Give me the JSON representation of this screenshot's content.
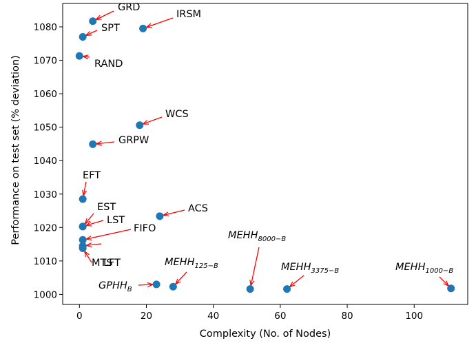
{
  "chart_data": {
    "type": "scatter",
    "title": "",
    "xlabel": "Complexity (No. of Nodes)",
    "ylabel": "Performance on test set (% deviation)",
    "xlim": [
      -5,
      116
    ],
    "ylim": [
      997,
      1087
    ],
    "xticks": [
      0,
      20,
      40,
      60,
      80,
      100
    ],
    "yticks": [
      1000,
      1010,
      1020,
      1030,
      1040,
      1050,
      1060,
      1070,
      1080
    ],
    "xtick_labels": [
      "0",
      "20",
      "40",
      "60",
      "80",
      "100"
    ],
    "ytick_labels": [
      "1000",
      "1010",
      "1020",
      "1030",
      "1040",
      "1050",
      "1060",
      "1070",
      "1080"
    ],
    "grid": false,
    "marker_color": "#1f77b4",
    "arrow_color": "#ff0000",
    "points": [
      {
        "label": "GRD",
        "x": 4,
        "y": 1081.7
      },
      {
        "label": "IRSM",
        "x": 19,
        "y": 1079.5
      },
      {
        "label": "SPT",
        "x": 1,
        "y": 1077
      },
      {
        "label": "RAND",
        "x": 0,
        "y": 1071.3
      },
      {
        "label": "WCS",
        "x": 18,
        "y": 1050.6
      },
      {
        "label": "GRPW",
        "x": 4,
        "y": 1044.9
      },
      {
        "label": "EFT",
        "x": 1,
        "y": 1028.5
      },
      {
        "label": "EST",
        "x": 1,
        "y": 1020.3
      },
      {
        "label": "ACS",
        "x": 24,
        "y": 1023.4
      },
      {
        "label": "LST",
        "x": 1,
        "y": 1020.3
      },
      {
        "label": "FIFO",
        "x": 1,
        "y": 1016.3
      },
      {
        "label": "LFT",
        "x": 1,
        "y": 1014.5
      },
      {
        "label": "MTS",
        "x": 1,
        "y": 1013.8
      },
      {
        "label": "GPHH",
        "sub": "B",
        "x": 23,
        "y": 1003
      },
      {
        "label": "MEHH",
        "sub": "125−B",
        "x": 28,
        "y": 1002.3
      },
      {
        "label": "MEHH",
        "sub": "8000−B",
        "x": 51,
        "y": 1001.6
      },
      {
        "label": "MEHH",
        "sub": "3375−B",
        "x": 62,
        "y": 1001.6
      },
      {
        "label": "MEHH",
        "sub": "1000−B",
        "x": 111,
        "y": 1001.8
      }
    ]
  }
}
